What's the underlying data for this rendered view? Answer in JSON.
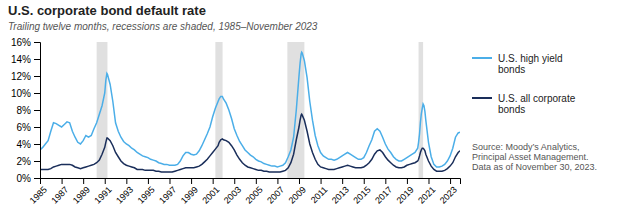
{
  "chart_data": {
    "type": "line",
    "title": "U.S. corporate bond default rate",
    "subtitle": "Trailing twelve months, recessions are shaded, 1985–November 2023",
    "source": "Source: Moody’s Analytics,\nPrincipal Asset Management.\nData as of November 30, 2023.",
    "legend": "right",
    "grid": false,
    "xlim": [
      1985.0,
      2023.92
    ],
    "xticks": [
      1985,
      1987,
      1989,
      1991,
      1993,
      1995,
      1997,
      1999,
      2001,
      2003,
      2005,
      2007,
      2009,
      2011,
      2013,
      2015,
      2017,
      2019,
      2021,
      2023
    ],
    "ylim": [
      0,
      0.16
    ],
    "yticks": [
      {
        "value": 0.0,
        "label": "0%"
      },
      {
        "value": 0.02,
        "label": "2%"
      },
      {
        "value": 0.04,
        "label": "4%"
      },
      {
        "value": 0.06,
        "label": "6%"
      },
      {
        "value": 0.08,
        "label": "8%"
      },
      {
        "value": 0.1,
        "label": "10%"
      },
      {
        "value": 0.12,
        "label": "12%"
      },
      {
        "value": 0.14,
        "label": "14%"
      },
      {
        "value": 0.16,
        "label": "16%"
      }
    ],
    "recessions": [
      [
        1990.25,
        1991.25
      ],
      [
        2001.25,
        2001.92
      ],
      [
        2007.92,
        2009.5
      ],
      [
        2020.08,
        2020.5
      ]
    ],
    "x": [
      1985.0,
      1985.25,
      1985.5,
      1985.75,
      1986.0,
      1986.25,
      1986.5,
      1986.75,
      1987.0,
      1987.25,
      1987.5,
      1987.75,
      1988.0,
      1988.25,
      1988.5,
      1988.75,
      1989.0,
      1989.25,
      1989.5,
      1989.75,
      1990.0,
      1990.25,
      1990.5,
      1990.75,
      1991.0,
      1991.1,
      1991.2,
      1991.25,
      1991.5,
      1991.75,
      1992.0,
      1992.25,
      1992.5,
      1992.75,
      1993.0,
      1993.25,
      1993.5,
      1993.75,
      1994.0,
      1994.25,
      1994.5,
      1994.75,
      1995.0,
      1995.25,
      1995.5,
      1995.75,
      1996.0,
      1996.25,
      1996.5,
      1996.75,
      1997.0,
      1997.25,
      1997.5,
      1997.75,
      1998.0,
      1998.25,
      1998.5,
      1998.75,
      1999.0,
      1999.25,
      1999.5,
      1999.75,
      2000.0,
      2000.25,
      2000.5,
      2000.75,
      2001.0,
      2001.25,
      2001.5,
      2001.6,
      2001.75,
      2001.9,
      2002.0,
      2002.25,
      2002.5,
      2002.75,
      2003.0,
      2003.25,
      2003.5,
      2003.75,
      2004.0,
      2004.25,
      2004.5,
      2004.75,
      2005.0,
      2005.25,
      2005.5,
      2005.75,
      2006.0,
      2006.25,
      2006.5,
      2006.75,
      2007.0,
      2007.25,
      2007.5,
      2007.75,
      2008.0,
      2008.25,
      2008.5,
      2008.75,
      2009.0,
      2009.1,
      2009.2,
      2009.25,
      2009.3,
      2009.5,
      2009.75,
      2010.0,
      2010.25,
      2010.5,
      2010.75,
      2011.0,
      2011.25,
      2011.5,
      2011.75,
      2012.0,
      2012.25,
      2012.5,
      2012.75,
      2013.0,
      2013.25,
      2013.5,
      2013.75,
      2014.0,
      2014.25,
      2014.5,
      2014.75,
      2015.0,
      2015.25,
      2015.5,
      2015.75,
      2016.0,
      2016.25,
      2016.5,
      2016.75,
      2017.0,
      2017.25,
      2017.5,
      2017.75,
      2018.0,
      2018.25,
      2018.5,
      2018.75,
      2019.0,
      2019.25,
      2019.5,
      2019.75,
      2020.0,
      2020.08,
      2020.17,
      2020.25,
      2020.33,
      2020.42,
      2020.5,
      2020.58,
      2020.67,
      2020.75,
      2021.0,
      2021.25,
      2021.5,
      2021.75,
      2022.0,
      2022.25,
      2022.5,
      2022.75,
      2023.0,
      2023.25,
      2023.5,
      2023.75,
      2023.92
    ],
    "series": [
      {
        "name": "U.S. high yield\nbonds",
        "color": "#4BAEE8",
        "values": [
          0.033,
          0.036,
          0.04,
          0.044,
          0.055,
          0.065,
          0.064,
          0.062,
          0.06,
          0.063,
          0.066,
          0.065,
          0.055,
          0.048,
          0.042,
          0.04,
          0.044,
          0.05,
          0.048,
          0.05,
          0.058,
          0.065,
          0.075,
          0.085,
          0.1,
          0.115,
          0.123,
          0.122,
          0.11,
          0.09,
          0.065,
          0.055,
          0.048,
          0.043,
          0.04,
          0.038,
          0.035,
          0.033,
          0.03,
          0.028,
          0.026,
          0.025,
          0.024,
          0.022,
          0.021,
          0.02,
          0.018,
          0.017,
          0.016,
          0.016,
          0.015,
          0.015,
          0.015,
          0.016,
          0.02,
          0.026,
          0.03,
          0.03,
          0.028,
          0.027,
          0.028,
          0.032,
          0.038,
          0.045,
          0.052,
          0.06,
          0.072,
          0.082,
          0.09,
          0.093,
          0.096,
          0.096,
          0.093,
          0.088,
          0.08,
          0.07,
          0.058,
          0.05,
          0.043,
          0.038,
          0.033,
          0.03,
          0.027,
          0.025,
          0.022,
          0.02,
          0.019,
          0.017,
          0.016,
          0.015,
          0.014,
          0.014,
          0.013,
          0.014,
          0.015,
          0.018,
          0.025,
          0.033,
          0.048,
          0.08,
          0.12,
          0.135,
          0.146,
          0.148,
          0.147,
          0.138,
          0.118,
          0.09,
          0.068,
          0.05,
          0.038,
          0.03,
          0.026,
          0.024,
          0.022,
          0.022,
          0.021,
          0.022,
          0.024,
          0.026,
          0.028,
          0.03,
          0.028,
          0.026,
          0.024,
          0.022,
          0.022,
          0.024,
          0.03,
          0.038,
          0.045,
          0.055,
          0.058,
          0.055,
          0.048,
          0.04,
          0.034,
          0.03,
          0.025,
          0.022,
          0.02,
          0.02,
          0.022,
          0.024,
          0.026,
          0.028,
          0.03,
          0.035,
          0.042,
          0.052,
          0.065,
          0.075,
          0.082,
          0.087,
          0.085,
          0.078,
          0.068,
          0.042,
          0.025,
          0.016,
          0.013,
          0.013,
          0.014,
          0.016,
          0.02,
          0.026,
          0.035,
          0.048,
          0.053,
          0.054
        ]
      },
      {
        "name": "U.S. all corporate\nbonds",
        "color": "#1A2E5A",
        "values": [
          0.01,
          0.01,
          0.01,
          0.01,
          0.011,
          0.013,
          0.014,
          0.015,
          0.016,
          0.016,
          0.016,
          0.016,
          0.015,
          0.013,
          0.012,
          0.011,
          0.012,
          0.013,
          0.014,
          0.015,
          0.016,
          0.018,
          0.021,
          0.028,
          0.036,
          0.042,
          0.047,
          0.047,
          0.044,
          0.038,
          0.03,
          0.025,
          0.02,
          0.017,
          0.015,
          0.014,
          0.013,
          0.012,
          0.01,
          0.01,
          0.01,
          0.009,
          0.009,
          0.009,
          0.009,
          0.008,
          0.008,
          0.007,
          0.007,
          0.007,
          0.007,
          0.007,
          0.008,
          0.009,
          0.01,
          0.011,
          0.012,
          0.012,
          0.012,
          0.012,
          0.013,
          0.014,
          0.016,
          0.019,
          0.022,
          0.026,
          0.03,
          0.034,
          0.038,
          0.042,
          0.045,
          0.046,
          0.045,
          0.044,
          0.042,
          0.038,
          0.033,
          0.027,
          0.022,
          0.018,
          0.015,
          0.013,
          0.012,
          0.011,
          0.01,
          0.009,
          0.009,
          0.008,
          0.008,
          0.007,
          0.007,
          0.007,
          0.007,
          0.007,
          0.008,
          0.009,
          0.012,
          0.018,
          0.028,
          0.045,
          0.06,
          0.068,
          0.074,
          0.075,
          0.074,
          0.068,
          0.055,
          0.04,
          0.03,
          0.022,
          0.016,
          0.013,
          0.012,
          0.011,
          0.01,
          0.01,
          0.01,
          0.011,
          0.012,
          0.013,
          0.014,
          0.015,
          0.014,
          0.013,
          0.012,
          0.012,
          0.012,
          0.013,
          0.015,
          0.018,
          0.022,
          0.028,
          0.032,
          0.033,
          0.03,
          0.025,
          0.021,
          0.018,
          0.015,
          0.013,
          0.012,
          0.012,
          0.013,
          0.015,
          0.016,
          0.017,
          0.018,
          0.02,
          0.022,
          0.026,
          0.03,
          0.033,
          0.035,
          0.035,
          0.034,
          0.032,
          0.028,
          0.02,
          0.014,
          0.01,
          0.008,
          0.008,
          0.008,
          0.009,
          0.011,
          0.014,
          0.018,
          0.025,
          0.03,
          0.032
        ]
      }
    ]
  }
}
